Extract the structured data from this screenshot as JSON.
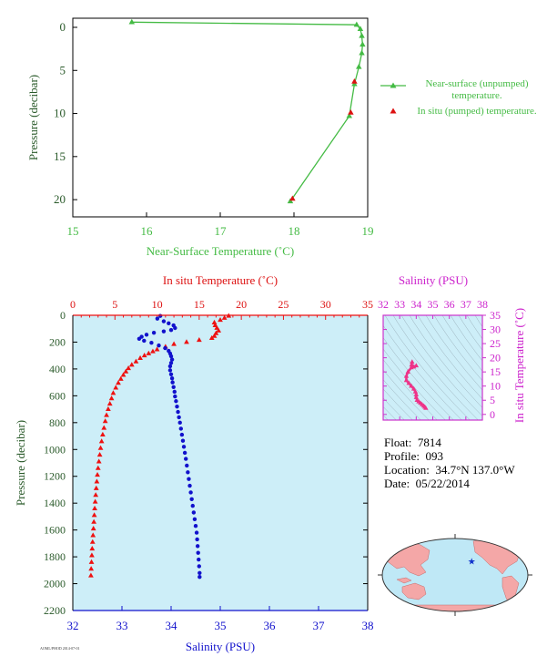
{
  "chart_data": [
    {
      "type": "line",
      "id": "near-surface",
      "xlabel": "Near-Surface Temperature (˚C)",
      "ylabel": "Pressure (decibar)",
      "xlim": [
        15,
        19
      ],
      "ylim": [
        0,
        22
      ],
      "x_ticks": [
        15,
        16,
        17,
        18,
        19
      ],
      "y_ticks": [
        0,
        5,
        10,
        15,
        20
      ],
      "y_inverted": true,
      "series": [
        {
          "name": "Near-surface (unpumped) temperature.",
          "color": "#44bb44",
          "marker": "triangle",
          "points": [
            [
              15.8,
              -0.6
            ],
            [
              18.85,
              -0.3
            ],
            [
              18.9,
              0.2
            ],
            [
              18.92,
              1.0
            ],
            [
              18.93,
              2.0
            ],
            [
              18.92,
              3.0
            ],
            [
              18.88,
              4.6
            ],
            [
              18.82,
              6.6
            ],
            [
              18.75,
              10.3
            ],
            [
              17.95,
              20.2
            ]
          ]
        },
        {
          "name": "In situ (pumped) temperature.",
          "color": "#dd1111",
          "marker": "triangle",
          "points": [
            [
              18.82,
              6.3
            ],
            [
              18.77,
              9.9
            ],
            [
              17.98,
              19.9
            ]
          ]
        }
      ],
      "legend_position": "right"
    },
    {
      "type": "scatter",
      "id": "profile",
      "xlabel": "Salinity (PSU)",
      "x2label": "In situ Temperature (˚C)",
      "ylabel": "Pressure (decibar)",
      "xlim": [
        32,
        38
      ],
      "x2lim": [
        0,
        35
      ],
      "ylim": [
        0,
        2200
      ],
      "x_ticks": [
        32,
        33,
        34,
        35,
        36,
        37,
        38
      ],
      "x2_ticks": [
        0,
        5,
        10,
        15,
        20,
        25,
        30,
        35
      ],
      "y_ticks": [
        0,
        200,
        400,
        600,
        800,
        1000,
        1200,
        1400,
        1600,
        1800,
        2000,
        2200
      ],
      "y_inverted": true,
      "background": "#cdeef8",
      "temperature_series": {
        "color": "#ee1111",
        "marker": "triangle",
        "points": [
          [
            18.5,
            5
          ],
          [
            18.0,
            20
          ],
          [
            17.5,
            35
          ],
          [
            16.8,
            55
          ],
          [
            16.9,
            75
          ],
          [
            17.1,
            95
          ],
          [
            17.3,
            115
          ],
          [
            17.0,
            135
          ],
          [
            16.8,
            155
          ],
          [
            16.5,
            170
          ],
          [
            15.0,
            185
          ],
          [
            13.5,
            200
          ],
          [
            12.0,
            215
          ],
          [
            11.0,
            235
          ],
          [
            10.0,
            255
          ],
          [
            9.5,
            270
          ],
          [
            9.0,
            285
          ],
          [
            8.5,
            300
          ],
          [
            8.0,
            320
          ],
          [
            7.5,
            345
          ],
          [
            7.0,
            370
          ],
          [
            6.6,
            395
          ],
          [
            6.3,
            420
          ],
          [
            6.0,
            445
          ],
          [
            5.7,
            475
          ],
          [
            5.4,
            505
          ],
          [
            5.1,
            540
          ],
          [
            4.8,
            580
          ],
          [
            4.6,
            620
          ],
          [
            4.4,
            660
          ],
          [
            4.2,
            700
          ],
          [
            4.0,
            745
          ],
          [
            3.85,
            790
          ],
          [
            3.7,
            840
          ],
          [
            3.55,
            890
          ],
          [
            3.42,
            940
          ],
          [
            3.3,
            990
          ],
          [
            3.2,
            1040
          ],
          [
            3.1,
            1090
          ],
          [
            3.0,
            1140
          ],
          [
            2.92,
            1190
          ],
          [
            2.85,
            1240
          ],
          [
            2.78,
            1290
          ],
          [
            2.72,
            1340
          ],
          [
            2.66,
            1390
          ],
          [
            2.6,
            1440
          ],
          [
            2.55,
            1490
          ],
          [
            2.5,
            1540
          ],
          [
            2.45,
            1590
          ],
          [
            2.4,
            1640
          ],
          [
            2.35,
            1690
          ],
          [
            2.3,
            1740
          ],
          [
            2.26,
            1790
          ],
          [
            2.22,
            1840
          ],
          [
            2.18,
            1890
          ],
          [
            2.15,
            1940
          ]
        ]
      },
      "salinity_series": {
        "color": "#1111cc",
        "marker": "dot",
        "points": [
          [
            33.78,
            5
          ],
          [
            33.72,
            25
          ],
          [
            33.85,
            45
          ],
          [
            33.95,
            60
          ],
          [
            34.05,
            75
          ],
          [
            34.08,
            95
          ],
          [
            34.0,
            110
          ],
          [
            33.85,
            120
          ],
          [
            33.65,
            130
          ],
          [
            33.5,
            145
          ],
          [
            33.4,
            160
          ],
          [
            33.35,
            175
          ],
          [
            33.45,
            190
          ],
          [
            33.6,
            205
          ],
          [
            33.75,
            225
          ],
          [
            33.88,
            245
          ],
          [
            33.95,
            265
          ],
          [
            33.98,
            285
          ],
          [
            34.0,
            305
          ],
          [
            34.02,
            330
          ],
          [
            34.0,
            355
          ],
          [
            33.98,
            380
          ],
          [
            33.98,
            410
          ],
          [
            34.0,
            440
          ],
          [
            34.02,
            470
          ],
          [
            34.03,
            500
          ],
          [
            34.05,
            535
          ],
          [
            34.07,
            570
          ],
          [
            34.08,
            605
          ],
          [
            34.1,
            640
          ],
          [
            34.12,
            680
          ],
          [
            34.14,
            720
          ],
          [
            34.16,
            760
          ],
          [
            34.18,
            800
          ],
          [
            34.2,
            845
          ],
          [
            34.22,
            890
          ],
          [
            34.24,
            935
          ],
          [
            34.26,
            980
          ],
          [
            34.28,
            1025
          ],
          [
            34.3,
            1070
          ],
          [
            34.32,
            1120
          ],
          [
            34.34,
            1170
          ],
          [
            34.36,
            1220
          ],
          [
            34.38,
            1270
          ],
          [
            34.4,
            1320
          ],
          [
            34.42,
            1370
          ],
          [
            34.44,
            1420
          ],
          [
            34.46,
            1470
          ],
          [
            34.48,
            1520
          ],
          [
            34.5,
            1570
          ],
          [
            34.52,
            1620
          ],
          [
            34.53,
            1670
          ],
          [
            34.54,
            1720
          ],
          [
            34.55,
            1770
          ],
          [
            34.56,
            1820
          ],
          [
            34.57,
            1870
          ],
          [
            34.58,
            1920
          ],
          [
            34.58,
            1950
          ]
        ]
      }
    },
    {
      "type": "scatter",
      "id": "ts-diagram",
      "xlabel": "Salinity (PSU)",
      "ylabel": "In situ Temperature (˚C)",
      "xlim": [
        32,
        38
      ],
      "ylim": [
        -2,
        35
      ],
      "x_ticks": [
        32,
        33,
        34,
        35,
        36,
        37,
        38
      ],
      "y_ticks": [
        0,
        5,
        10,
        15,
        20,
        25,
        30,
        35
      ],
      "series_color": "#ee3388",
      "points": [
        [
          33.75,
          18.5
        ],
        [
          33.72,
          17.5
        ],
        [
          33.85,
          16.8
        ],
        [
          34.0,
          17.2
        ],
        [
          33.7,
          16.5
        ],
        [
          33.5,
          15.0
        ],
        [
          33.4,
          13.5
        ],
        [
          33.4,
          12.0
        ],
        [
          33.55,
          11.0
        ],
        [
          33.7,
          10.0
        ],
        [
          33.85,
          9.0
        ],
        [
          33.95,
          8.0
        ],
        [
          34.0,
          7.0
        ],
        [
          34.0,
          6.0
        ],
        [
          34.05,
          5.0
        ],
        [
          34.15,
          4.5
        ],
        [
          34.25,
          4.0
        ],
        [
          34.35,
          3.5
        ],
        [
          34.45,
          3.0
        ],
        [
          34.52,
          2.6
        ],
        [
          34.58,
          2.2
        ]
      ]
    }
  ],
  "float_info": {
    "float_label": "Float:",
    "float_value": "7814",
    "profile_label": "Profile:",
    "profile_value": "093",
    "location_label": "Location:",
    "location_value": "34.7°N  137.0°W",
    "date_label": "Date:",
    "date_value": "05/22/2014"
  },
  "map": {
    "marker_color": "#1133cc",
    "land_color": "#f4a7a7",
    "ocean_color": "#bfe8f6",
    "marker_lon": -137.0,
    "marker_lat": 34.7
  },
  "footer_text": "AOML/PHOD 2014-07-01"
}
